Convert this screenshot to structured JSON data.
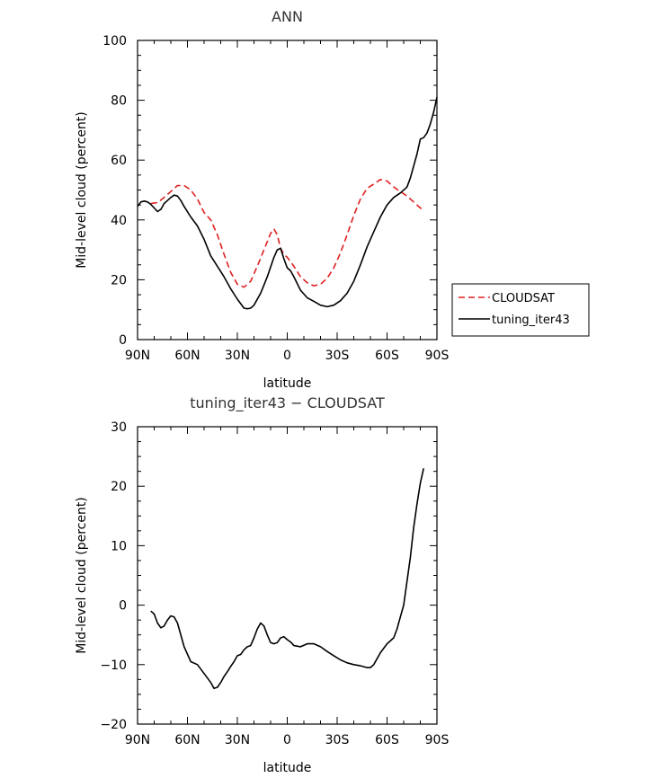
{
  "chart_data": [
    {
      "type": "line",
      "title": "ANN",
      "xlabel": "latitude",
      "ylabel": "Mid-level cloud (percent)",
      "xlim": [
        90,
        -90
      ],
      "ylim": [
        0,
        100
      ],
      "x_ticks": [
        90,
        60,
        30,
        0,
        -30,
        -60,
        -90
      ],
      "x_tick_labels": [
        "90N",
        "60N",
        "30N",
        "0",
        "30S",
        "60S",
        "90S"
      ],
      "y_ticks": [
        0,
        20,
        40,
        60,
        80,
        100
      ],
      "y_tick_labels": [
        "0",
        "20",
        "40",
        "60",
        "80",
        "100"
      ],
      "legend_position": "right",
      "series": [
        {
          "name": "CLOUDSAT",
          "color": "#e02020",
          "style": "dashed",
          "x": [
            82,
            78,
            74,
            70,
            66,
            62,
            58,
            54,
            50,
            46,
            42,
            38,
            34,
            30,
            26,
            22,
            18,
            14,
            10,
            8,
            6,
            4,
            2,
            0,
            -4,
            -8,
            -12,
            -16,
            -20,
            -24,
            -28,
            -32,
            -36,
            -40,
            -44,
            -48,
            -52,
            -56,
            -60,
            -64,
            -68,
            -72,
            -76,
            -80,
            -82
          ],
          "y": [
            45.5,
            45.8,
            47.5,
            49.5,
            51.5,
            51.5,
            50,
            47,
            42.5,
            40,
            35,
            28.5,
            22.5,
            18.5,
            17.5,
            19.5,
            24.5,
            30,
            35.5,
            37,
            35,
            30.5,
            28.5,
            27.5,
            24.5,
            21,
            19,
            18,
            18.5,
            20.5,
            24,
            29,
            35,
            41.5,
            47,
            50.5,
            52,
            53.5,
            53,
            51,
            49.5,
            48,
            46,
            44,
            43.5
          ]
        },
        {
          "name": "tuning_iter43",
          "color": "#000000",
          "style": "solid",
          "x": [
            90,
            88,
            86,
            84,
            82,
            80,
            78,
            76,
            74,
            72,
            70,
            68,
            66,
            64,
            62,
            58,
            54,
            50,
            46,
            42,
            38,
            34,
            30,
            26,
            24,
            22,
            20,
            16,
            12,
            8,
            6,
            4,
            2,
            0,
            -2,
            -4,
            -8,
            -12,
            -16,
            -20,
            -24,
            -28,
            -32,
            -36,
            -40,
            -44,
            -48,
            -52,
            -56,
            -60,
            -64,
            -68,
            -72,
            -74,
            -76,
            -78,
            -80,
            -82,
            -84,
            -86,
            -88,
            -90
          ],
          "y": [
            44.5,
            46,
            46.3,
            46,
            45.2,
            44,
            42.8,
            43.5,
            45.5,
            46.5,
            47.5,
            48.3,
            48,
            46.5,
            44.5,
            41,
            38,
            33.5,
            28,
            24.5,
            21,
            17,
            13.5,
            10.5,
            10.3,
            10.5,
            11.5,
            15.5,
            21,
            27.5,
            30,
            30.5,
            27,
            24,
            23,
            21,
            16.5,
            14,
            12.8,
            11.5,
            11,
            11.5,
            13,
            15.5,
            19.5,
            25,
            31,
            36,
            41,
            45,
            47.5,
            49,
            51,
            54,
            58,
            62,
            67,
            67.5,
            69,
            72,
            76,
            81
          ]
        }
      ]
    },
    {
      "type": "line",
      "title": "tuning_iter43 − CLOUDSAT",
      "xlabel": "latitude",
      "ylabel": "Mid-level cloud (percent)",
      "xlim": [
        90,
        -90
      ],
      "ylim": [
        -20,
        30
      ],
      "x_ticks": [
        90,
        60,
        30,
        0,
        -30,
        -60,
        -90
      ],
      "x_tick_labels": [
        "90N",
        "60N",
        "30N",
        "0",
        "30S",
        "60S",
        "90S"
      ],
      "y_ticks": [
        -20,
        -10,
        0,
        10,
        20,
        30
      ],
      "y_tick_labels": [
        "−20",
        "−10",
        "0",
        "10",
        "20",
        "30"
      ],
      "series": [
        {
          "color": "#000000",
          "style": "solid",
          "x": [
            82,
            80,
            78,
            76,
            74,
            72,
            70,
            68,
            66,
            62,
            58,
            54,
            50,
            46,
            44,
            42,
            40,
            38,
            36,
            34,
            32,
            30,
            28,
            26,
            24,
            22,
            20,
            18,
            16,
            14,
            12,
            10,
            8,
            6,
            4,
            2,
            0,
            -2,
            -4,
            -8,
            -12,
            -16,
            -20,
            -24,
            -28,
            -32,
            -36,
            -40,
            -44,
            -48,
            -50,
            -52,
            -56,
            -60,
            -64,
            -66,
            -68,
            -70,
            -72,
            -74,
            -76,
            -78,
            -80,
            -82
          ],
          "y": [
            -1,
            -1.5,
            -3,
            -3.8,
            -3.5,
            -2.5,
            -1.8,
            -2,
            -3,
            -7,
            -9.5,
            -10,
            -11.5,
            -13,
            -14,
            -13.8,
            -13,
            -12,
            -11.2,
            -10.3,
            -9.5,
            -8.5,
            -8.3,
            -7.5,
            -7,
            -6.8,
            -5.5,
            -4,
            -3,
            -3.5,
            -5,
            -6.3,
            -6.5,
            -6.3,
            -5.5,
            -5.3,
            -5.8,
            -6.2,
            -6.8,
            -7,
            -6.5,
            -6.5,
            -7,
            -7.8,
            -8.5,
            -9.2,
            -9.7,
            -10,
            -10.2,
            -10.5,
            -10.5,
            -10,
            -8,
            -6.5,
            -5.5,
            -4,
            -2,
            0,
            4,
            8,
            13,
            17,
            20.5,
            23
          ]
        }
      ]
    }
  ]
}
